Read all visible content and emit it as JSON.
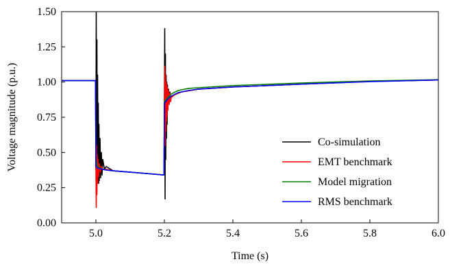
{
  "chart_data": {
    "type": "line",
    "xlabel": "Time (s)",
    "ylabel": "Voltage magnitude (p.u.)",
    "xlim": [
      4.9,
      6.0
    ],
    "ylim": [
      0.0,
      1.5
    ],
    "xticks": [
      5.0,
      5.2,
      5.4,
      5.6,
      5.8,
      6.0
    ],
    "xtick_labels": [
      "5.0",
      "5.2",
      "5.4",
      "5.6",
      "5.8",
      "6.0"
    ],
    "yticks": [
      0.0,
      0.25,
      0.5,
      0.75,
      1.0,
      1.25,
      1.5
    ],
    "ytick_labels": [
      "0.00",
      "0.25",
      "0.50",
      "0.75",
      "1.00",
      "1.25",
      "1.50"
    ],
    "grid": false,
    "legend_position": "bottom-right",
    "series": [
      {
        "name": "Co-simulation",
        "color": "#000000",
        "x": [
          4.9,
          4.999,
          5.0,
          5.001,
          5.002,
          5.003,
          5.004,
          5.005,
          5.006,
          5.007,
          5.008,
          5.009,
          5.01,
          5.012,
          5.014,
          5.016,
          5.018,
          5.02,
          5.025,
          5.03,
          5.05,
          5.1,
          5.15,
          5.199,
          5.2,
          5.201,
          5.202,
          5.203,
          5.204,
          5.205,
          5.206,
          5.207,
          5.208,
          5.209,
          5.21,
          5.212,
          5.214,
          5.216,
          5.218,
          5.22,
          5.23,
          5.25,
          5.3,
          5.4,
          5.6,
          5.8,
          6.0
        ],
        "y": [
          1.01,
          1.01,
          0.38,
          1.5,
          0.55,
          1.3,
          0.4,
          1.05,
          0.3,
          0.85,
          0.28,
          0.7,
          0.3,
          0.6,
          0.32,
          0.5,
          0.34,
          0.45,
          0.38,
          0.4,
          0.37,
          0.36,
          0.35,
          0.34,
          0.86,
          1.38,
          0.17,
          1.2,
          0.45,
          1.05,
          0.6,
          1.0,
          0.7,
          0.98,
          0.8,
          0.95,
          0.85,
          0.93,
          0.88,
          0.9,
          0.91,
          0.93,
          0.95,
          0.965,
          0.985,
          1.005,
          1.015
        ]
      },
      {
        "name": "EMT benchmark",
        "color": "#ff0000",
        "x": [
          4.9,
          4.999,
          5.0,
          5.001,
          5.002,
          5.003,
          5.004,
          5.005,
          5.006,
          5.008,
          5.01,
          5.013,
          5.016,
          5.02,
          5.03,
          5.05,
          5.1,
          5.15,
          5.199,
          5.2,
          5.201,
          5.202,
          5.203,
          5.204,
          5.205,
          5.206,
          5.207,
          5.208,
          5.209,
          5.21,
          5.212,
          5.214,
          5.216,
          5.218,
          5.22,
          5.23,
          5.25,
          5.3,
          5.4,
          5.6,
          5.8,
          6.0
        ],
        "y": [
          1.01,
          1.01,
          0.4,
          0.11,
          0.55,
          0.2,
          0.48,
          0.28,
          0.45,
          0.33,
          0.42,
          0.36,
          0.4,
          0.38,
          0.38,
          0.37,
          0.36,
          0.35,
          0.34,
          0.8,
          1.11,
          0.55,
          1.05,
          0.65,
          1.0,
          0.72,
          0.98,
          0.76,
          0.96,
          0.8,
          0.94,
          0.84,
          0.92,
          0.86,
          0.89,
          0.91,
          0.93,
          0.95,
          0.965,
          0.985,
          1.005,
          1.015
        ]
      },
      {
        "name": "Model migration",
        "color": "#008000",
        "x": [
          4.9,
          4.999,
          5.0,
          5.005,
          5.01,
          5.02,
          5.03,
          5.05,
          5.1,
          5.15,
          5.199,
          5.2,
          5.21,
          5.22,
          5.24,
          5.27,
          5.3,
          5.4,
          5.6,
          5.8,
          6.0
        ],
        "y": [
          1.01,
          1.01,
          0.45,
          0.4,
          0.39,
          0.38,
          0.375,
          0.37,
          0.36,
          0.35,
          0.34,
          0.86,
          0.89,
          0.915,
          0.94,
          0.955,
          0.96,
          0.975,
          0.993,
          1.008,
          1.017
        ]
      },
      {
        "name": "RMS benchmark",
        "color": "#0000ff",
        "x": [
          4.9,
          4.999,
          5.0,
          5.005,
          5.01,
          5.02,
          5.03,
          5.05,
          5.1,
          5.15,
          5.199,
          5.2,
          5.21,
          5.22,
          5.24,
          5.27,
          5.3,
          5.4,
          5.6,
          5.8,
          6.0
        ],
        "y": [
          1.01,
          1.01,
          0.4,
          0.39,
          0.385,
          0.38,
          0.375,
          0.37,
          0.36,
          0.35,
          0.34,
          0.85,
          0.88,
          0.9,
          0.925,
          0.94,
          0.95,
          0.965,
          0.985,
          1.003,
          1.015
        ]
      }
    ]
  }
}
